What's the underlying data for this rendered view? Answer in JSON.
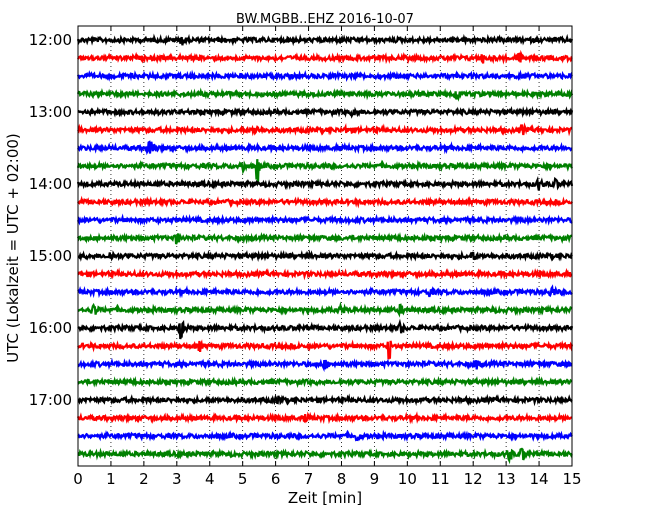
{
  "chart_data": {
    "type": "line",
    "title": "BW.MGBB..EHZ 2016-10-07",
    "xlabel": "Zeit  [min]",
    "ylabel": "UTC (Lokalzeit = UTC + 02:00)",
    "xlim": [
      0,
      15
    ],
    "x_ticks": [
      "0",
      "1",
      "2",
      "3",
      "4",
      "5",
      "6",
      "7",
      "8",
      "9",
      "10",
      "11",
      "12",
      "13",
      "14",
      "15"
    ],
    "y_tick_labels": [
      "12:00",
      "13:00",
      "14:00",
      "15:00",
      "16:00",
      "17:00"
    ],
    "grid": true,
    "trace_colors": [
      "#000000",
      "#ff0000",
      "#0000ff",
      "#008000"
    ],
    "traces": [
      {
        "start": "12:00",
        "events": [
          {
            "t": 3.2,
            "amp": 0.25
          }
        ]
      },
      {
        "start": "12:15",
        "events": [
          {
            "t": 12.3,
            "amp": 0.2
          },
          {
            "t": 13.4,
            "amp": 0.2
          }
        ]
      },
      {
        "start": "12:30",
        "events": []
      },
      {
        "start": "12:45",
        "events": [
          {
            "t": 11.5,
            "amp": 0.25
          }
        ]
      },
      {
        "start": "13:00",
        "events": [
          {
            "t": 8.4,
            "amp": 0.25
          }
        ]
      },
      {
        "start": "13:15",
        "events": [
          {
            "t": 5.4,
            "amp": 0.2
          },
          {
            "t": 8.2,
            "amp": 0.2
          },
          {
            "t": 13.5,
            "amp": 0.2
          }
        ]
      },
      {
        "start": "13:30",
        "events": [
          {
            "t": 2.2,
            "amp": 0.5
          }
        ]
      },
      {
        "start": "13:45",
        "events": [
          {
            "t": 5.0,
            "amp": 0.3
          },
          {
            "t": 5.45,
            "amp": 1.1
          }
        ]
      },
      {
        "start": "14:00",
        "events": [
          {
            "t": 14.0,
            "amp": 0.25
          },
          {
            "t": 14.5,
            "amp": 0.2
          }
        ]
      },
      {
        "start": "14:15",
        "events": []
      },
      {
        "start": "14:30",
        "events": []
      },
      {
        "start": "14:45",
        "events": [
          {
            "t": 3.0,
            "amp": 0.25
          }
        ]
      },
      {
        "start": "15:00",
        "events": [
          {
            "t": 1.0,
            "amp": 0.2
          },
          {
            "t": 12.0,
            "amp": 0.2
          }
        ]
      },
      {
        "start": "15:15",
        "events": []
      },
      {
        "start": "15:30",
        "events": [
          {
            "t": 10.7,
            "amp": 0.2
          },
          {
            "t": 14.4,
            "amp": 0.25
          }
        ]
      },
      {
        "start": "15:45",
        "events": [
          {
            "t": 0.5,
            "amp": 0.3
          },
          {
            "t": 8.0,
            "amp": 0.2
          },
          {
            "t": 9.8,
            "amp": 0.2
          }
        ]
      },
      {
        "start": "16:00",
        "events": [
          {
            "t": 3.15,
            "amp": 1.5
          },
          {
            "t": 9.8,
            "amp": 0.25
          }
        ]
      },
      {
        "start": "16:15",
        "events": [
          {
            "t": 3.7,
            "amp": 0.2
          },
          {
            "t": 9.45,
            "amp": 0.8
          }
        ]
      },
      {
        "start": "16:30",
        "events": [
          {
            "t": 7.5,
            "amp": 0.2
          },
          {
            "t": 12.1,
            "amp": 0.2
          }
        ]
      },
      {
        "start": "16:45",
        "events": []
      },
      {
        "start": "17:00",
        "events": [
          {
            "t": 6.1,
            "amp": 0.2
          }
        ]
      },
      {
        "start": "17:15",
        "events": [
          {
            "t": 6.9,
            "amp": 0.15
          }
        ]
      },
      {
        "start": "17:30",
        "events": [
          {
            "t": 8.5,
            "amp": 0.25
          }
        ]
      },
      {
        "start": "17:45",
        "events": [
          {
            "t": 13.1,
            "amp": 0.3
          },
          {
            "t": 13.5,
            "amp": 0.3
          }
        ]
      }
    ]
  }
}
